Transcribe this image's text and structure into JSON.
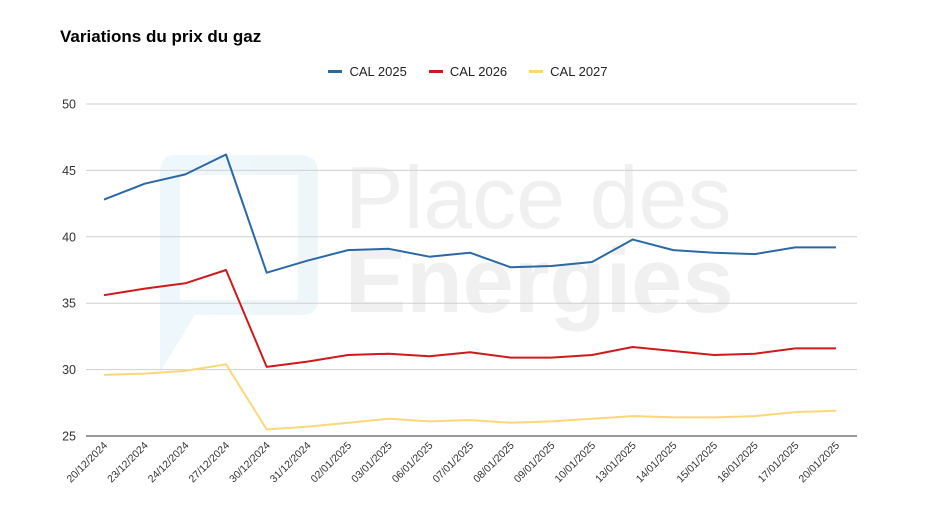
{
  "chart_data": {
    "type": "line",
    "title": "Variations du prix du gaz",
    "watermark": {
      "line1": "Place des",
      "line2": "Energies"
    },
    "categories": [
      "20/12/2024",
      "23/12/2024",
      "24/12/2024",
      "27/12/2024",
      "30/12/2024",
      "31/12/2024",
      "02/01/2025",
      "03/01/2025",
      "06/01/2025",
      "07/01/2025",
      "08/01/2025",
      "09/01/2025",
      "10/01/2025",
      "13/01/2025",
      "14/01/2025",
      "15/01/2025",
      "16/01/2025",
      "17/01/2025",
      "20/01/2025"
    ],
    "ylim": [
      25,
      50
    ],
    "yticks": [
      "25",
      "30",
      "35",
      "40",
      "45",
      "50"
    ],
    "legend_position": "top-center",
    "grid": true,
    "series": [
      {
        "name": "CAL 2025",
        "color": "#2a68a6",
        "values": [
          42.8,
          44.0,
          44.7,
          46.2,
          37.3,
          38.2,
          39.0,
          39.1,
          38.5,
          38.8,
          37.7,
          37.8,
          38.1,
          39.8,
          39.0,
          38.8,
          38.7,
          39.2,
          39.2
        ]
      },
      {
        "name": "CAL 2026",
        "color": "#d0191a",
        "values": [
          35.6,
          36.1,
          36.5,
          37.5,
          30.2,
          30.6,
          31.1,
          31.2,
          31.0,
          31.3,
          30.9,
          30.9,
          31.1,
          31.7,
          31.4,
          31.1,
          31.2,
          31.6,
          31.6
        ]
      },
      {
        "name": "CAL 2027",
        "color": "#fbd77a",
        "values": [
          29.6,
          29.7,
          29.9,
          30.4,
          25.5,
          25.7,
          26.0,
          26.3,
          26.1,
          26.2,
          26.0,
          26.1,
          26.3,
          26.5,
          26.4,
          26.4,
          26.5,
          26.8,
          26.9
        ]
      }
    ]
  }
}
